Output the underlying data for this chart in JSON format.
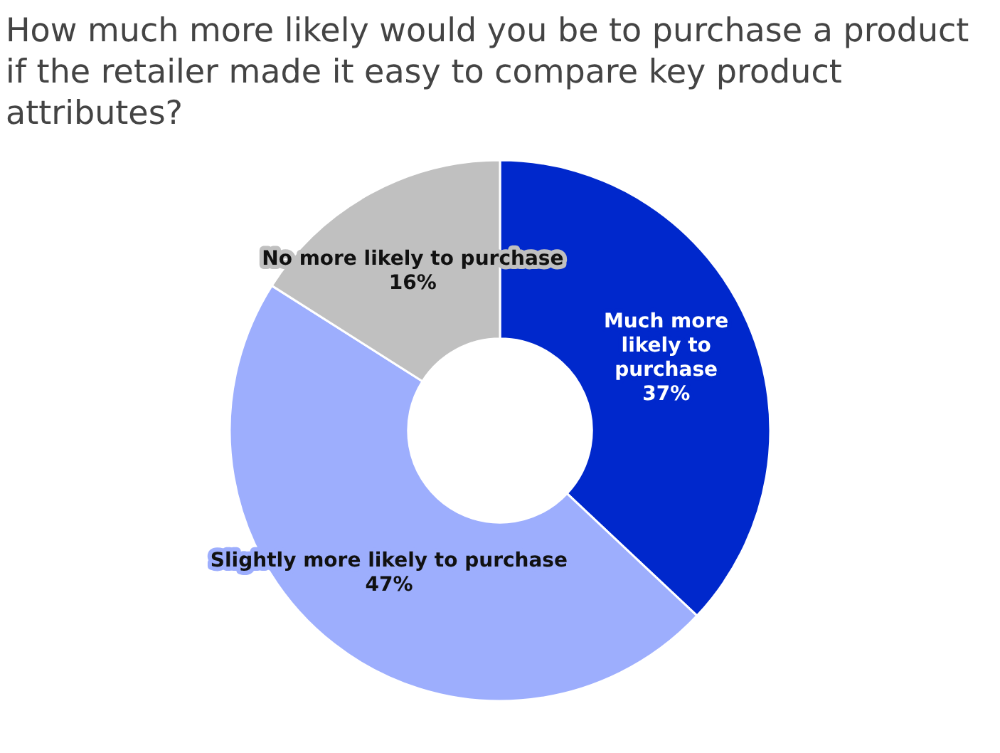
{
  "chart_data": {
    "type": "donut",
    "title": "How much more likely would you be to purchase a product if the retailer made it easy to compare key product attributes?",
    "categories": [
      "Much more likely to purchase",
      "Slightly more likely to purchase",
      "No more likely to purchase"
    ],
    "values": [
      37,
      47,
      16
    ],
    "colors": [
      "#0028cc",
      "#9daefd",
      "#c0c0c0"
    ],
    "value_labels": [
      "37%",
      "47%",
      "16%"
    ],
    "legend": false
  }
}
